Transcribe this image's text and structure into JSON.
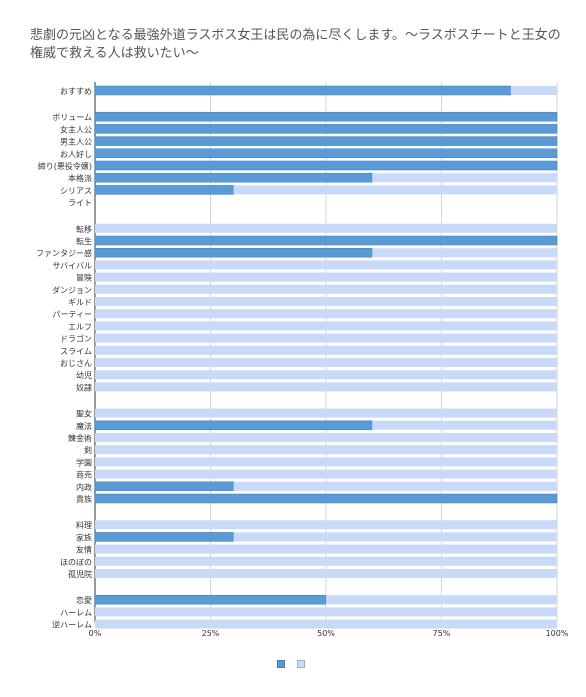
{
  "title": "悲劇の元凶となる最強外道ラスボス女王は民の為に尽くします。～ラスボスチートと王女の権威で救える人は救いたい～",
  "chart_data": {
    "type": "bar",
    "orientation": "horizontal",
    "stacked_to_100": true,
    "categories": [
      "おすすめ",
      "ボリューム",
      "女主人公",
      "男主人公",
      "お人好し",
      "締り(悪役令嬢)",
      "本格派",
      "シリアス",
      "ライト",
      "転移",
      "転生",
      "ファンタジー感",
      "サバイバル",
      "冒険",
      "ダンジョン",
      "ギルド",
      "パーティー",
      "エルフ",
      "ドラゴン",
      "スライム",
      "おじさん",
      "幼児",
      "奴隷",
      "聖女",
      "魔法",
      "錬金術",
      "剣",
      "学園",
      "商売",
      "内政",
      "貴族",
      "料理",
      "家族",
      "友情",
      "ほのぼの",
      "孤児院",
      "恋愛",
      "ハーレム",
      "逆ハーレム"
    ],
    "groups": [
      1,
      8,
      14,
      8,
      5,
      3
    ],
    "series": [
      {
        "values": [
          90,
          100,
          100,
          100,
          100,
          100,
          60,
          30,
          0,
          0,
          100,
          60,
          0,
          0,
          0,
          0,
          0,
          0,
          0,
          0,
          0,
          0,
          0,
          0,
          60,
          0,
          0,
          0,
          0,
          30,
          100,
          0,
          30,
          0,
          0,
          0,
          50,
          0,
          0
        ],
        "color": "#5b9bd5"
      },
      {
        "values": [
          10,
          0,
          0,
          0,
          0,
          0,
          40,
          70,
          0,
          100,
          0,
          40,
          100,
          100,
          100,
          100,
          100,
          100,
          100,
          100,
          100,
          100,
          100,
          100,
          40,
          100,
          100,
          100,
          100,
          70,
          0,
          100,
          70,
          100,
          100,
          100,
          50,
          100,
          100
        ],
        "color": "#c9daf8"
      }
    ],
    "xlim": [
      0,
      100
    ],
    "x_ticks": [
      "0%",
      "25%",
      "50%",
      "75%",
      "100%"
    ],
    "grid": true,
    "legend": "bottom"
  }
}
